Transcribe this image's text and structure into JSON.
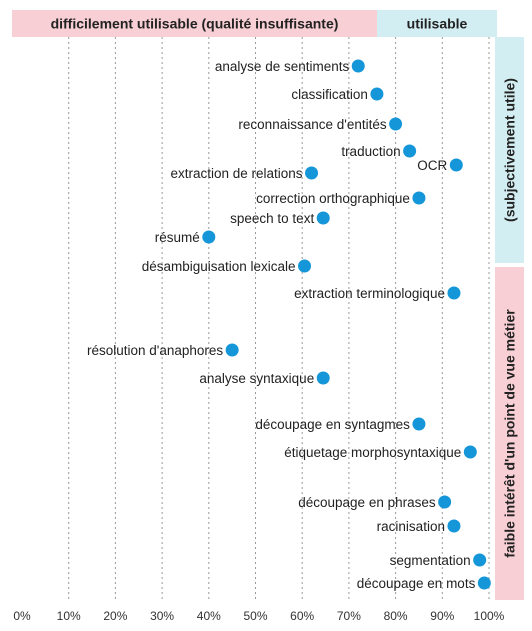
{
  "chart_data": {
    "type": "scatter",
    "title": "",
    "xlabel": "",
    "ylabel": "",
    "xlim": [
      0,
      100
    ],
    "x_ticks": [
      "0%",
      "10%",
      "20%",
      "30%",
      "40%",
      "50%",
      "60%",
      "70%",
      "80%",
      "90%",
      "100%"
    ],
    "grid": "vertical dashed",
    "top_bands": [
      {
        "label": "difficilement utilisable (qualité insuffisante)",
        "range": [
          0,
          75
        ],
        "color": "#f7cfd4"
      },
      {
        "label": "utilisable",
        "range": [
          75,
          100
        ],
        "color": "#d3eef2"
      }
    ],
    "side_bands": [
      {
        "label": "(subjectivement utile)",
        "color": "#d3eef2"
      },
      {
        "label": "faible intérêt d'un point de vue métier",
        "color": "#f7cfd4"
      }
    ],
    "point_color": "#1596d9",
    "points": [
      {
        "label": "analyse de sentiments",
        "x": 72
      },
      {
        "label": "classification",
        "x": 76
      },
      {
        "label": "reconnaissance d'entités",
        "x": 80
      },
      {
        "label": "traduction",
        "x": 83
      },
      {
        "label": "OCR",
        "x": 93
      },
      {
        "label": "extraction de relations",
        "x": 62
      },
      {
        "label": "correction orthographique",
        "x": 85
      },
      {
        "label": "speech to text",
        "x": 64.5
      },
      {
        "label": "résumé",
        "x": 40
      },
      {
        "label": "désambiguisation lexicale",
        "x": 60.5
      },
      {
        "label": "extraction terminologique",
        "x": 92.5
      },
      {
        "label": "résolution d'anaphores",
        "x": 45
      },
      {
        "label": "analyse syntaxique",
        "x": 64.5
      },
      {
        "label": "découpage en syntagmes",
        "x": 85
      },
      {
        "label": "étiquetage morphosyntaxique",
        "x": 96
      },
      {
        "label": "découpage en phrases",
        "x": 90.5
      },
      {
        "label": "racinisation",
        "x": 92.5
      },
      {
        "label": "segmentation",
        "x": 98
      },
      {
        "label": "découpage en mots",
        "x": 99
      }
    ]
  }
}
